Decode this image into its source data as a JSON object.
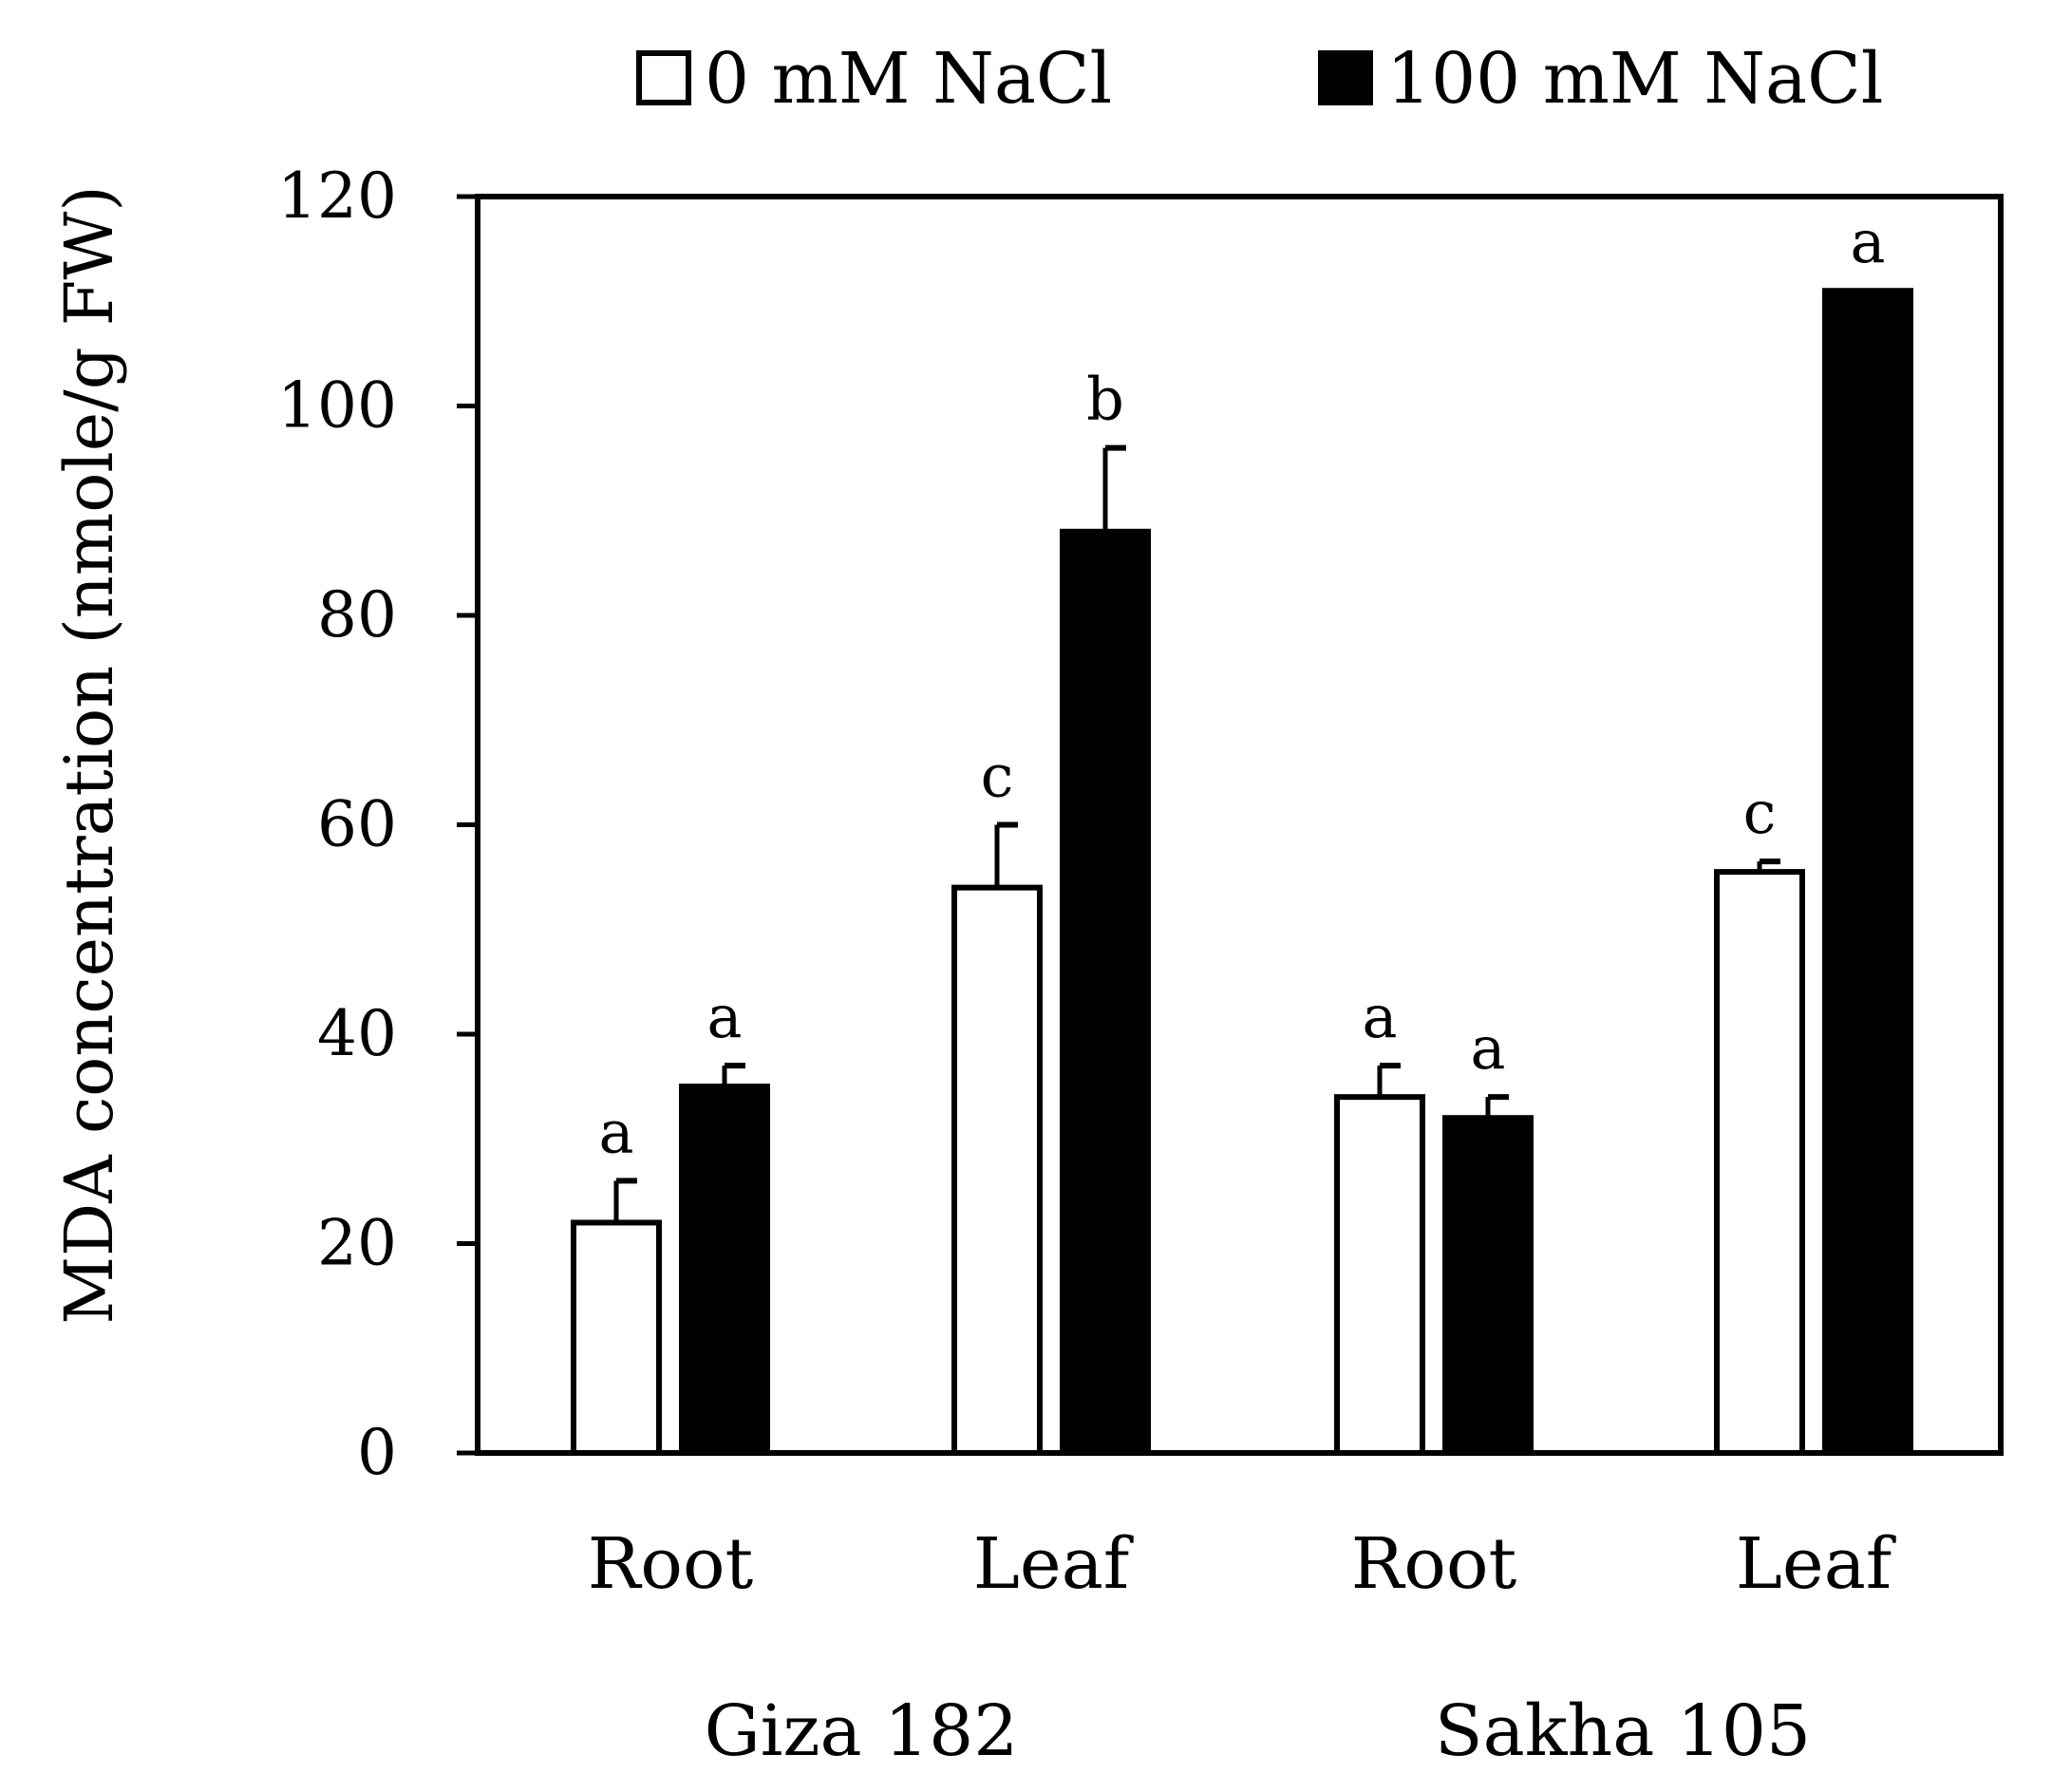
{
  "chart_data": {
    "type": "bar",
    "title": "",
    "xlabel": "",
    "ylabel": "MDA concentration (nmole/g FW)",
    "ylim": [
      0,
      120
    ],
    "yticks": [
      0,
      20,
      40,
      60,
      80,
      100,
      120
    ],
    "grid": false,
    "legend_position": "top",
    "categories": [
      "Root",
      "Leaf",
      "Root",
      "Leaf"
    ],
    "groups": [
      {
        "label": "Giza 182",
        "categories": [
          0,
          1
        ]
      },
      {
        "label": "Sakha 105",
        "categories": [
          2,
          3
        ]
      }
    ],
    "series": [
      {
        "name": "0 mM NaCl",
        "fill": "#ffffff",
        "stroke": "#000000",
        "values": [
          22,
          54,
          34,
          55.5
        ],
        "errors": [
          4,
          6,
          3,
          1
        ],
        "letters": [
          "a",
          "c",
          "a",
          "c"
        ]
      },
      {
        "name": "100 mM NaCl",
        "fill": "#000000",
        "stroke": "#000000",
        "values": [
          35,
          88,
          32,
          111
        ],
        "errors": [
          2,
          8,
          2,
          0
        ],
        "letters": [
          "a",
          "b",
          "a",
          "a"
        ]
      }
    ]
  }
}
